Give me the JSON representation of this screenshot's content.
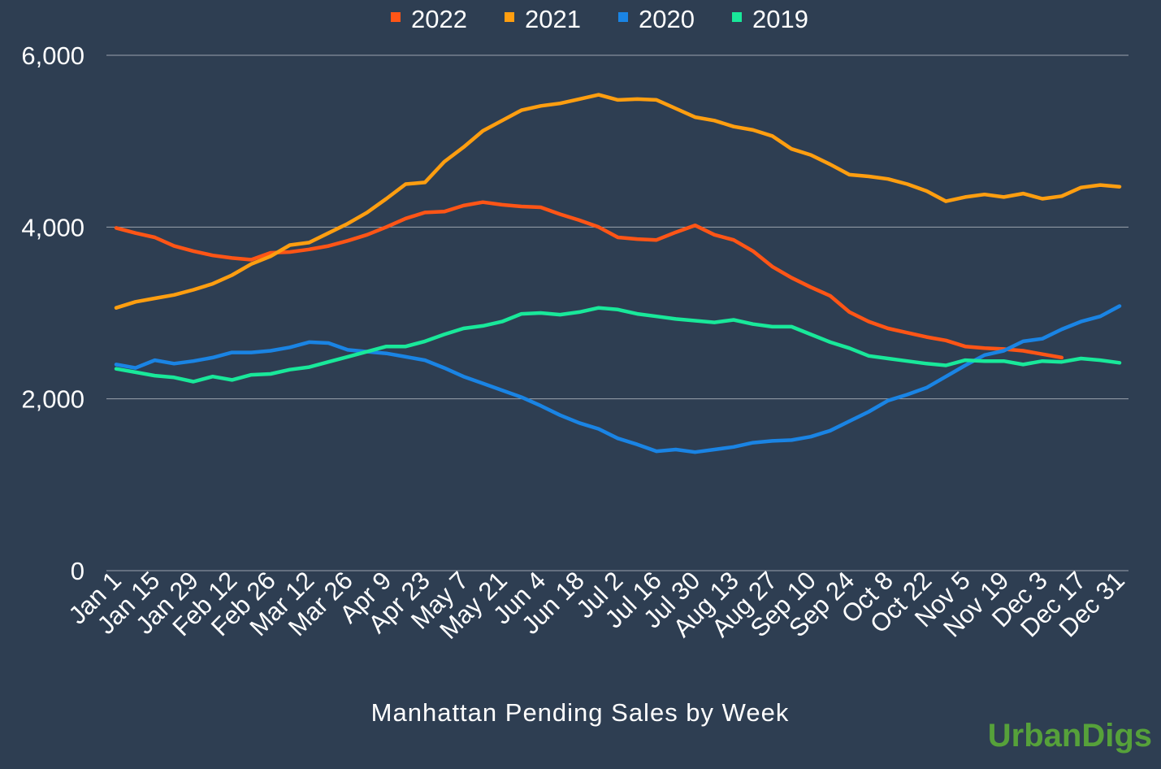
{
  "chart_data": {
    "type": "line",
    "title": "",
    "xlabel": "Manhattan Pending Sales by Week",
    "ylabel": "",
    "ylim": [
      0,
      6000
    ],
    "yticks": [
      "0",
      "2,000",
      "4,000",
      "6,000"
    ],
    "ytick_values": [
      0,
      2000,
      4000,
      6000
    ],
    "grid": true,
    "legend_position": "top-center",
    "x_tick_labels": [
      "Jan 1",
      "Jan 15",
      "Jan 29",
      "Feb 12",
      "Feb 26",
      "Mar 12",
      "Mar 26",
      "Apr 9",
      "Apr 23",
      "May 7",
      "May 21",
      "Jun 4",
      "Jun 18",
      "Jul 2",
      "Jul 16",
      "Jul 30",
      "Aug 13",
      "Aug 27",
      "Sep 10",
      "Sep 24",
      "Oct 8",
      "Oct 22",
      "Nov 5",
      "Nov 19",
      "Dec 3",
      "Dec 17",
      "Dec 31"
    ],
    "series": [
      {
        "name": "2022",
        "color": "#ff5516",
        "values": [
          3990,
          3930,
          3880,
          3780,
          3720,
          3670,
          3640,
          3620,
          3700,
          3710,
          3740,
          3780,
          3840,
          3910,
          4000,
          4100,
          4170,
          4180,
          4250,
          4290,
          4260,
          4240,
          4230,
          4150,
          4080,
          4000,
          3880,
          3860,
          3850,
          3940,
          4020,
          3910,
          3850,
          3720,
          3540,
          3410,
          3300,
          3200,
          3010,
          2900,
          2820,
          2770,
          2720,
          2680,
          2610,
          2590,
          2580,
          2560,
          2520,
          2480
        ]
      },
      {
        "name": "2021",
        "color": "#ff9e10",
        "values": [
          3060,
          3130,
          3170,
          3210,
          3270,
          3340,
          3440,
          3570,
          3660,
          3790,
          3820,
          3930,
          4040,
          4170,
          4330,
          4500,
          4520,
          4760,
          4930,
          5120,
          5240,
          5360,
          5410,
          5440,
          5490,
          5540,
          5480,
          5490,
          5480,
          5380,
          5280,
          5240,
          5170,
          5130,
          5060,
          4910,
          4840,
          4730,
          4610,
          4590,
          4560,
          4500,
          4420,
          4300,
          4350,
          4380,
          4350,
          4390,
          4330,
          4360,
          4460,
          4490,
          4470
        ]
      },
      {
        "name": "2020",
        "color": "#1a84e4",
        "values": [
          2400,
          2360,
          2450,
          2410,
          2440,
          2480,
          2540,
          2540,
          2560,
          2600,
          2660,
          2650,
          2570,
          2550,
          2530,
          2490,
          2450,
          2360,
          2260,
          2180,
          2100,
          2020,
          1920,
          1810,
          1720,
          1650,
          1540,
          1470,
          1390,
          1410,
          1380,
          1410,
          1440,
          1490,
          1510,
          1520,
          1560,
          1630,
          1740,
          1850,
          1980,
          2050,
          2130,
          2260,
          2390,
          2510,
          2560,
          2670,
          2700,
          2810,
          2900,
          2960,
          3080
        ]
      },
      {
        "name": "2019",
        "color": "#19e89a",
        "values": [
          2350,
          2310,
          2270,
          2250,
          2200,
          2260,
          2220,
          2280,
          2290,
          2340,
          2370,
          2430,
          2490,
          2550,
          2610,
          2610,
          2670,
          2750,
          2820,
          2850,
          2900,
          2990,
          3000,
          2980,
          3010,
          3060,
          3040,
          2990,
          2960,
          2930,
          2910,
          2890,
          2920,
          2870,
          2840,
          2840,
          2750,
          2660,
          2590,
          2500,
          2470,
          2440,
          2410,
          2390,
          2450,
          2440,
          2440,
          2400,
          2440,
          2430,
          2470,
          2450,
          2420
        ]
      }
    ],
    "label_color": "#ffffff",
    "grid_color": "#9aa3ad",
    "background": "#2e3e52"
  },
  "branding": {
    "logo_text": "UrbanDigs",
    "logo_color": "#56a13a"
  }
}
